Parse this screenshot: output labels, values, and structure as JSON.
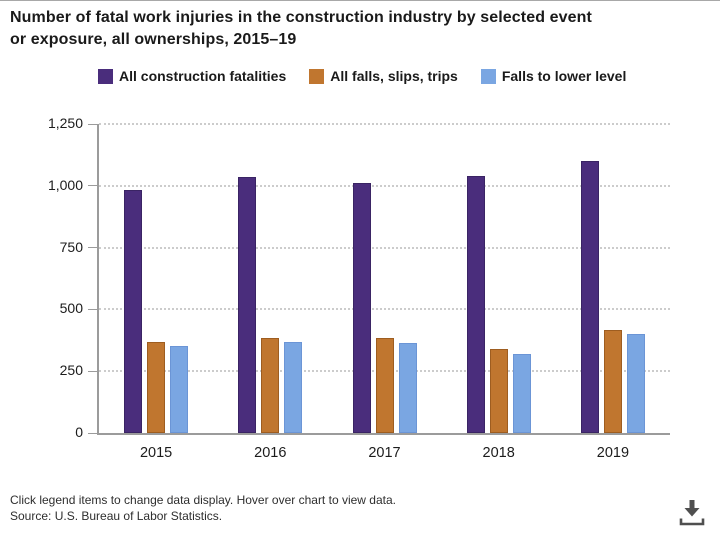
{
  "page": {
    "title": "Number of fatal work injuries in the construction industry by selected event\nor exposure, all ownerships, 2015–19"
  },
  "legend": {
    "items": [
      {
        "label": "All construction fatalities",
        "color": "#4a2d7c"
      },
      {
        "label": "All falls, slips, trips",
        "color": "#c0762f"
      },
      {
        "label": "Falls to lower level",
        "color": "#7aa6e2"
      }
    ]
  },
  "chart_data": {
    "type": "bar",
    "title": "Number of fatal work injuries in the construction industry by selected event or exposure, all ownerships, 2015–19",
    "categories": [
      "2015",
      "2016",
      "2017",
      "2018",
      "2019"
    ],
    "series": [
      {
        "name": "All construction fatalities",
        "color": "#4a2d7c",
        "border": "#3a2464",
        "values": [
          985,
          1034,
          1013,
          1038,
          1102
        ]
      },
      {
        "name": "All falls, slips, trips",
        "color": "#c0762f",
        "border": "#9e5d20",
        "values": [
          367,
          384,
          386,
          338,
          418
        ]
      },
      {
        "name": "Falls to lower level",
        "color": "#7aa6e2",
        "border": "#6b95d6",
        "values": [
          350,
          370,
          366,
          320,
          401
        ]
      }
    ],
    "xlabel": "",
    "ylabel": "",
    "ylim": [
      0,
      1250
    ],
    "ytick_interval": 250,
    "ytick_labels": [
      "0",
      "250",
      "500",
      "750",
      "1,000",
      "1,250"
    ],
    "grid": "horizontal-dotted",
    "legend_position": "top",
    "axis_color": "#9b9b9b",
    "gridline_color": "#cccccc"
  },
  "footer": {
    "note": "Click legend items to change data display. Hover over chart to view data.",
    "source": "Source: U.S. Bureau of Labor Statistics."
  },
  "icons": {
    "download": "download-icon",
    "download_color": "#4f4f4f"
  }
}
